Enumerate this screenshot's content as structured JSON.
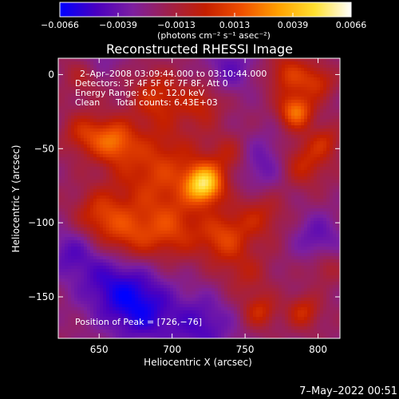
{
  "colorbar": {
    "ticks": [
      "−0.0066",
      "−0.0039",
      "−0.0013",
      "0.0013",
      "0.0039",
      "0.0066"
    ],
    "unit_label": "(photons cm⁻² s⁻¹ asec⁻²)",
    "range": [
      -0.0066,
      0.0066
    ],
    "stops": [
      "#0000ff",
      "#4a00c0",
      "#7d1fa0",
      "#a0204a",
      "#c41f00",
      "#f05000",
      "#ffa000",
      "#ffe030",
      "#ffffff"
    ]
  },
  "chart_data": {
    "type": "heatmap",
    "title": "Reconstructed RHESSI Image",
    "xlabel": "Heliocentric X (arcsec)",
    "ylabel": "Heliocentric Y (arcsec)",
    "xlim": [
      622,
      815
    ],
    "ylim": [
      -178,
      11
    ],
    "xticks": [
      650,
      700,
      750,
      800
    ],
    "yticks": [
      0,
      -50,
      -100,
      -150
    ],
    "xtick_labels": [
      "650",
      "700",
      "750",
      "800"
    ],
    "ytick_labels": [
      "0",
      "−50",
      "−100",
      "−150"
    ],
    "peak": [
      726,
      -76
    ],
    "annotations": [
      "2–Apr–2008 03:09:44.000 to 03:10:44.000",
      "Detectors: 3F 4F 5F 6F 7F 8F, Att 0",
      "Energy Range: 6.0 – 12.0 keV",
      "Clean",
      "Total counts: 6.43E+03",
      "Position of Peak = [726,−76]"
    ],
    "sources": [
      {
        "x": 722,
        "y": -74,
        "amp": 0.0066,
        "r": 9
      },
      {
        "x": 690,
        "y": -65,
        "amp": 0.003,
        "r": 22
      },
      {
        "x": 660,
        "y": -45,
        "amp": 0.0035,
        "r": 10
      },
      {
        "x": 640,
        "y": -40,
        "amp": 0.0025,
        "r": 10
      },
      {
        "x": 650,
        "y": -95,
        "amp": 0.0025,
        "r": 12
      },
      {
        "x": 670,
        "y": -110,
        "amp": 0.003,
        "r": 14
      },
      {
        "x": 700,
        "y": -105,
        "amp": 0.0025,
        "r": 14
      },
      {
        "x": 735,
        "y": -110,
        "amp": 0.003,
        "r": 12
      },
      {
        "x": 760,
        "y": -95,
        "amp": 0.002,
        "r": 12
      },
      {
        "x": 690,
        "y": -15,
        "amp": 0.0025,
        "r": 12
      },
      {
        "x": 720,
        "y": -20,
        "amp": 0.002,
        "r": 10
      },
      {
        "x": 740,
        "y": -55,
        "amp": 0.002,
        "r": 10
      },
      {
        "x": 785,
        "y": -25,
        "amp": 0.0045,
        "r": 8
      },
      {
        "x": 780,
        "y": 0,
        "amp": 0.0028,
        "r": 10
      },
      {
        "x": 800,
        "y": -5,
        "amp": 0.0025,
        "r": 8
      },
      {
        "x": 790,
        "y": -60,
        "amp": 0.0025,
        "r": 11
      },
      {
        "x": 805,
        "y": -45,
        "amp": 0.002,
        "r": 8
      },
      {
        "x": 750,
        "y": -135,
        "amp": 0.0015,
        "r": 12
      },
      {
        "x": 760,
        "y": -160,
        "amp": 0.0025,
        "r": 8
      },
      {
        "x": 790,
        "y": -160,
        "amp": 0.0025,
        "r": 8
      },
      {
        "x": 805,
        "y": -130,
        "amp": 0.0015,
        "r": 8
      },
      {
        "x": 640,
        "y": 0,
        "amp": 0.0015,
        "r": 10
      },
      {
        "x": 660,
        "y": -140,
        "amp": -0.003,
        "r": 18
      },
      {
        "x": 680,
        "y": -160,
        "amp": -0.003,
        "r": 16
      },
      {
        "x": 720,
        "y": -170,
        "amp": -0.0025,
        "r": 16
      },
      {
        "x": 630,
        "y": -120,
        "amp": -0.002,
        "r": 12
      },
      {
        "x": 740,
        "y": 5,
        "amp": -0.002,
        "r": 12
      },
      {
        "x": 760,
        "y": -60,
        "amp": -0.002,
        "r": 14
      },
      {
        "x": 650,
        "y": 10,
        "amp": -0.0015,
        "r": 10
      },
      {
        "x": 800,
        "y": -110,
        "amp": -0.002,
        "r": 12
      }
    ]
  },
  "footer": {
    "timestamp": "7–May–2022 00:51"
  }
}
